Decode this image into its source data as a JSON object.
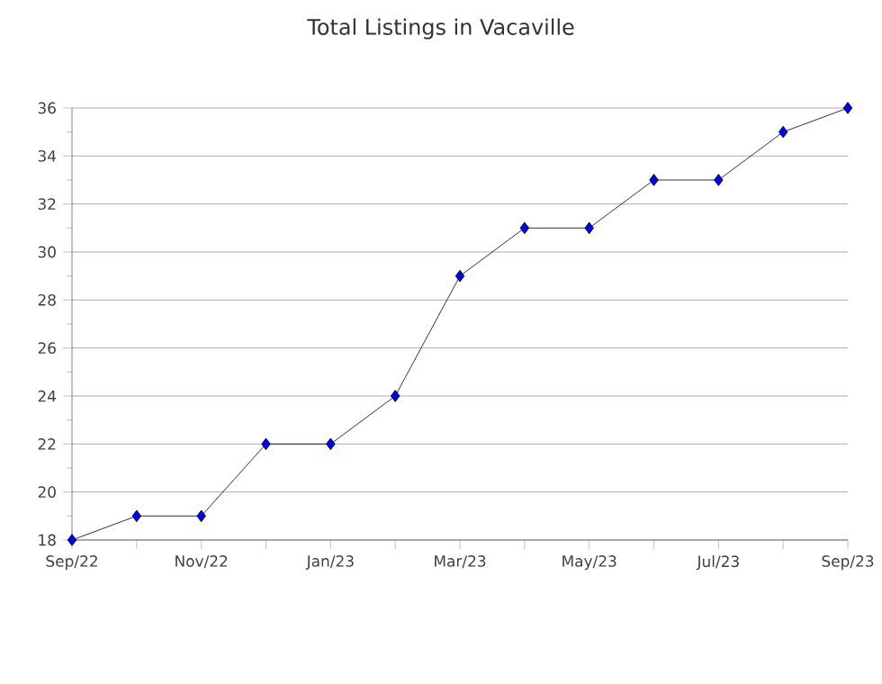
{
  "chart_data": {
    "type": "line",
    "title": "Total Listings in Vacaville",
    "categories": [
      "Sep/22",
      null,
      "Nov/22",
      null,
      "Jan/23",
      null,
      "Mar/23",
      null,
      "May/23",
      null,
      "Jul/23",
      null,
      "Sep/23"
    ],
    "series": [
      {
        "color": "#0000ff",
        "values": [
          18,
          19,
          19,
          22,
          22,
          24,
          29,
          31,
          31,
          33,
          33,
          35,
          36
        ]
      }
    ],
    "ylim": [
      18,
      36
    ],
    "yticks": [
      18,
      20,
      22,
      24,
      26,
      28,
      30,
      32,
      34,
      36
    ],
    "grid": "y",
    "marker": "diamond",
    "line_style": "solid"
  }
}
